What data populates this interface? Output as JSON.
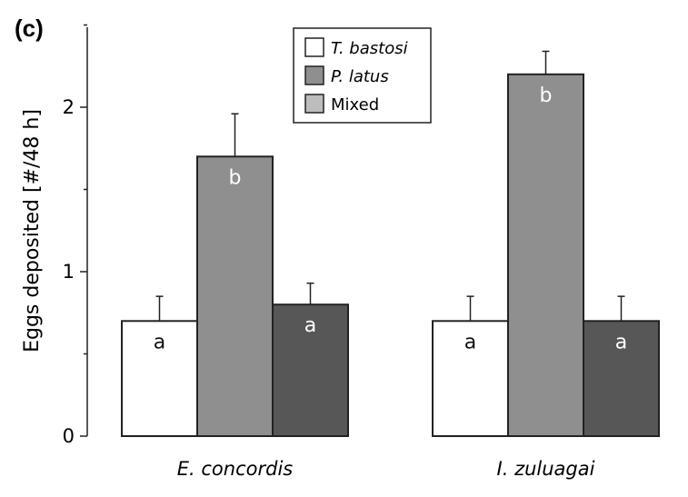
{
  "panel_label": "(c)",
  "colors": {
    "T. bastosi": "#ffffff",
    "P. latus": "#8f8f8f",
    "Mixed": "#575757",
    "legend_mixed_swatch": "#bdbdbd",
    "axis": "#222222"
  },
  "chart_data": {
    "type": "bar",
    "title": "",
    "xlabel": "",
    "ylabel": "Eggs deposited [#/48 h]",
    "ylim": [
      0,
      2.5
    ],
    "yticks": [
      0,
      1,
      2
    ],
    "categories": [
      "E. concordis",
      "I. zuluagai"
    ],
    "series": [
      {
        "name": "T. bastosi",
        "values": [
          0.7,
          0.7
        ],
        "errors": [
          0.15,
          0.15
        ],
        "letters": [
          "a",
          "a"
        ]
      },
      {
        "name": "P. latus",
        "values": [
          1.7,
          2.2
        ],
        "errors": [
          0.26,
          0.14
        ],
        "letters": [
          "b",
          "b"
        ]
      },
      {
        "name": "Mixed",
        "values": [
          0.8,
          0.7
        ],
        "errors": [
          0.13,
          0.15
        ],
        "letters": [
          "a",
          "a"
        ]
      }
    ],
    "legend": {
      "position": "top-center",
      "entries": [
        {
          "label": "T. bastosi",
          "italic": true
        },
        {
          "label": "P. latus",
          "italic": true
        },
        {
          "label": "Mixed",
          "italic": false
        }
      ]
    },
    "grid": false
  }
}
